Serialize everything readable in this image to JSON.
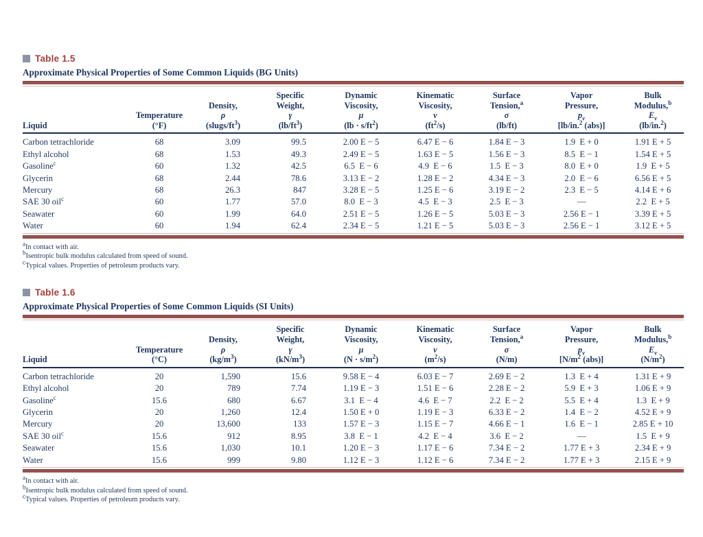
{
  "colors": {
    "text_navy": "#1e355d",
    "title_red": "#a23f3c",
    "square_slate": "#8b93a4",
    "rule_maroon": "#96524e",
    "rule_pale_pink": "#dcb9b6"
  },
  "tables": [
    {
      "label": "Table 1.5",
      "title": "Approximate Physical Properties of Some Common Liquids (BG Units)",
      "columns": [
        "Liquid",
        "Temperature<br>(°F)",
        "Density,<br><i>ρ</i><br>(slugs/ft<sup>3</sup>)",
        "Specific<br>Weight,<br><i>γ</i><br>(lb/ft<sup>3</sup>)",
        "Dynamic<br>Viscosity,<br><i>μ</i><br>(lb · s/ft<sup>2</sup>)",
        "Kinematic<br>Viscosity,<br><i>ν</i><br>(ft<sup>2</sup>/s)",
        "Surface<br>Tension,<sup>a</sup><br><i>σ</i><br>(lb/ft)",
        "Vapor<br>Pressure,<br><i>p<sub>v</sub></i><br>[lb/in.<sup>2</sup> (abs)]",
        "Bulk<br>Modulus,<sup>b</sup><br><i>E<sub>v</sub></i><br>(lb/in.<sup>2</sup>)"
      ],
      "rows": [
        [
          "Carbon tetrachloride",
          "68",
          "3.09",
          "99.5",
          "2.00 E − 5",
          "6.47 E − 6",
          "1.84 E − 3",
          "1.9  E + 0",
          "1.91 E + 5"
        ],
        [
          "Ethyl alcohol",
          "68",
          "1.53",
          "49.3",
          "2.49 E − 5",
          "1.63 E − 5",
          "1.56 E − 3",
          "8.5  E − 1",
          "1.54 E + 5"
        ],
        [
          "Gasoline<sup>c</sup>",
          "60",
          "1.32",
          "42.5",
          "6.5  E − 6",
          "4.9  E − 6",
          "1.5  E − 3",
          "8.0  E + 0",
          "1.9  E + 5"
        ],
        [
          "Glycerin",
          "68",
          "2.44",
          "78.6",
          "3.13 E − 2",
          "1.28 E − 2",
          "4.34 E − 3",
          "2.0  E − 6",
          "6.56 E + 5"
        ],
        [
          "Mercury",
          "68",
          "26.3",
          "847",
          "3.28 E − 5",
          "1.25 E − 6",
          "3.19 E − 2",
          "2.3  E − 5",
          "4.14 E + 6"
        ],
        [
          "SAE 30 oil<sup>c</sup>",
          "60",
          "1.77",
          "57.0",
          "8.0  E − 3",
          "4.5  E − 3",
          "2.5  E − 3",
          "—",
          "2.2  E + 5"
        ],
        [
          "Seawater",
          "60",
          "1.99",
          "64.0",
          "2.51 E − 5",
          "1.26 E − 5",
          "5.03 E − 3",
          "2.56 E − 1",
          "3.39 E + 5"
        ],
        [
          "Water",
          "60",
          "1.94",
          "62.4",
          "2.34 E − 5",
          "1.21 E − 5",
          "5.03 E − 3",
          "2.56 E − 1",
          "3.12 E + 5"
        ]
      ],
      "footnotes": [
        "<sup>a</sup>In contact with air.",
        "<sup>b</sup>Isentropic bulk modulus calculated from speed of sound.",
        "<sup>c</sup>Typical values. Properties of petroleum products vary."
      ]
    },
    {
      "label": "Table 1.6",
      "title": "Approximate Physical Properties of Some Common Liquids (SI Units)",
      "columns": [
        "Liquid",
        "Temperature<br>(°C)",
        "Density,<br><i>ρ</i><br>(kg/m<sup>3</sup>)",
        "Specific<br>Weight,<br><i>γ</i><br>(kN/m<sup>3</sup>)",
        "Dynamic<br>Viscosity,<br><i>μ</i><br>(N · s/m<sup>2</sup>)",
        "Kinematic<br>Viscosity,<br><i>ν</i><br>(m<sup>2</sup>/s)",
        "Surface<br>Tension,<sup>a</sup><br><i>σ</i><br>(N/m)",
        "Vapor<br>Pressure,<br><i>p<sub>v</sub></i><br>[N/m<sup>2</sup> (abs)]",
        "Bulk<br>Modulus,<sup>b</sup><br><i>E<sub>v</sub></i><br>(N/m<sup>2</sup>)"
      ],
      "rows": [
        [
          "Carbon tetrachloride",
          "20",
          "1,590",
          "15.6",
          "9.58 E − 4",
          "6.03 E − 7",
          "2.69 E − 2",
          "1.3  E + 4",
          "1.31 E + 9"
        ],
        [
          "Ethyl alcohol",
          "20",
          "789",
          "7.74",
          "1.19 E − 3",
          "1.51 E − 6",
          "2.28 E − 2",
          "5.9  E + 3",
          "1.06 E + 9"
        ],
        [
          "Gasoline<sup>c</sup>",
          "15.6",
          "680",
          "6.67",
          "3.1  E − 4",
          "4.6  E − 7",
          "2.2  E − 2",
          "5.5  E + 4",
          "1.3  E + 9"
        ],
        [
          "Glycerin",
          "20",
          "1,260",
          "12.4",
          "1.50 E + 0",
          "1.19 E − 3",
          "6.33 E − 2",
          "1.4  E − 2",
          "4.52 E + 9"
        ],
        [
          "Mercury",
          "20",
          "13,600",
          "133",
          "1.57 E − 3",
          "1.15 E − 7",
          "4.66 E − 1",
          "1.6  E − 1",
          "2.85 E + 10"
        ],
        [
          "SAE 30 oil<sup>c</sup>",
          "15.6",
          "912",
          "8.95",
          "3.8  E − 1",
          "4.2  E − 4",
          "3.6  E − 2",
          "—",
          "1.5  E + 9"
        ],
        [
          "Seawater",
          "15.6",
          "1,030",
          "10.1",
          "1.20 E − 3",
          "1.17 E − 6",
          "7.34 E − 2",
          "1.77 E + 3",
          "2.34 E + 9"
        ],
        [
          "Water",
          "15.6",
          "999",
          "9.80",
          "1.12 E − 3",
          "1.12 E − 6",
          "7.34 E − 2",
          "1.77 E + 3",
          "2.15 E + 9"
        ]
      ],
      "footnotes": [
        "<sup>a</sup>In contact with air.",
        "<sup>b</sup>Isentropic bulk modulus calculated from speed of sound.",
        "<sup>c</sup>Typical values. Properties of petroleum products vary."
      ]
    }
  ]
}
